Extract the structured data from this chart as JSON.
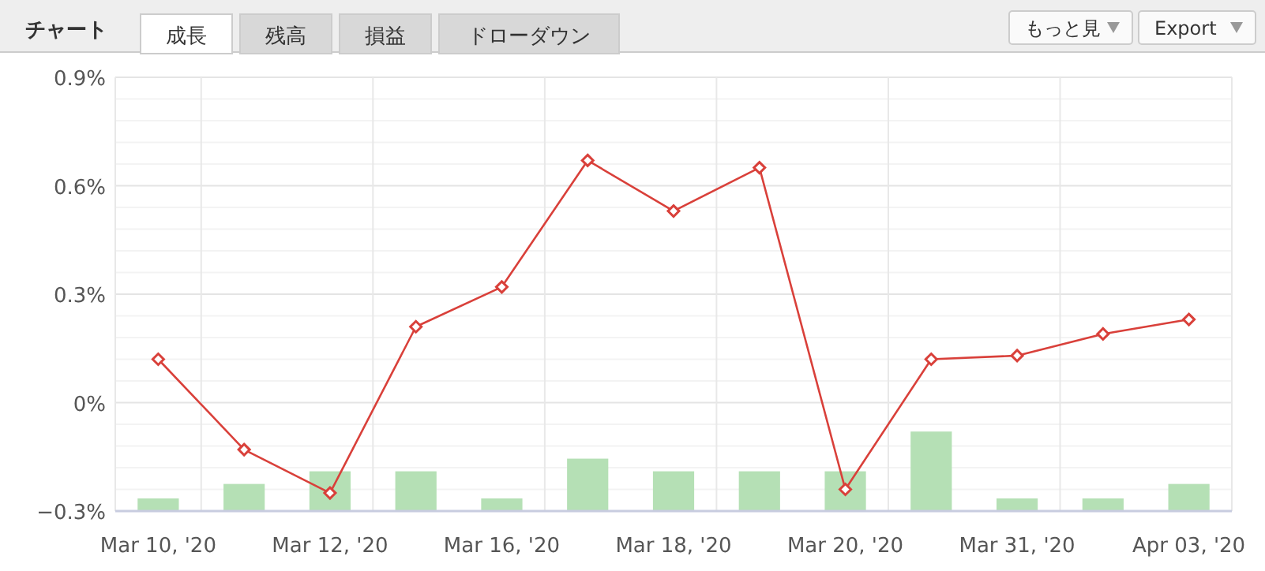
{
  "chart_data": {
    "type": "line",
    "title": "チャート",
    "annotations": [
      "成長",
      "残高",
      "損益",
      "ドローダウン",
      "もっと見",
      "Export"
    ],
    "categories": [
      "Mar 10, '20",
      null,
      "Mar 12, '20",
      null,
      "Mar 16, '20",
      null,
      "Mar 18, '20",
      null,
      "Mar 20, '20",
      null,
      "Mar 31, '20",
      null,
      "Apr 03, '20"
    ],
    "series": [
      {
        "type": "bar",
        "color": "#b5e0b5",
        "base": [
          -0.3,
          -0.3,
          -0.3,
          -0.3,
          -0.3,
          -0.3,
          -0.3,
          -0.3,
          -0.3,
          -0.3,
          -0.3,
          -0.3,
          -0.3
        ],
        "values": [
          0.035,
          0.075,
          0.11,
          0.11,
          0.035,
          0.145,
          0.11,
          0.11,
          0.11,
          0.22,
          0.035,
          0.035,
          0.075
        ]
      },
      {
        "color": "#d9403a",
        "values": [
          0.12,
          -0.13,
          -0.25,
          0.21,
          0.32,
          0.67,
          0.53,
          0.65,
          -0.24,
          0.12,
          0.13,
          0.19,
          0.23
        ]
      }
    ],
    "ylim": [
      -0.3,
      0.9
    ],
    "yticks": [
      {
        "value": -0.3,
        "label": "−0.3%"
      },
      {
        "value": 0,
        "label": "0%"
      },
      {
        "value": 0.3,
        "label": "0.3%"
      },
      {
        "value": 0.6,
        "label": "0.6%"
      },
      {
        "value": 0.9,
        "label": "0.9%"
      }
    ],
    "grid": true,
    "marker": "diamond",
    "line_style": "solid"
  }
}
